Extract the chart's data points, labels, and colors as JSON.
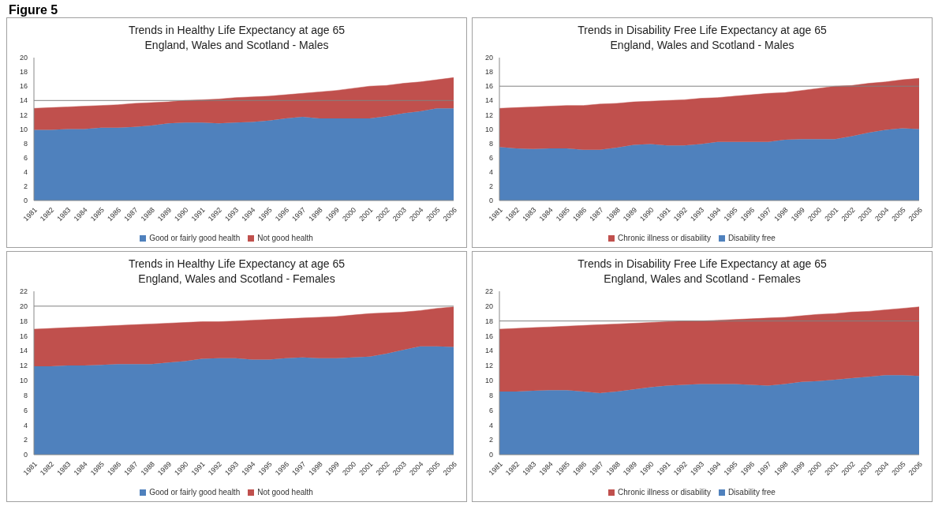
{
  "chart_data": [
    {
      "type": "area",
      "title": "Trends in Healthy Life Expectancy at age 65",
      "subtitle": "England, Wales and Scotland - Males",
      "annotations": [
        "Figure 5"
      ],
      "categories": [
        "1981",
        "1982",
        "1983",
        "1984",
        "1985",
        "1986",
        "1987",
        "1988",
        "1989",
        "1990",
        "1991",
        "1992",
        "1993",
        "1994",
        "1995",
        "1996",
        "1997",
        "1998",
        "1999",
        "2000",
        "2001",
        "2002",
        "2003",
        "2004",
        "2005",
        "2006"
      ],
      "stacked": true,
      "ylim": [
        0,
        20
      ],
      "yticks": [
        0,
        2,
        4,
        6,
        8,
        10,
        12,
        14,
        16,
        18,
        20
      ],
      "legend": "bottom",
      "ref_lines": [
        {
          "axis": "y",
          "value": 14,
          "color": "#808080"
        }
      ],
      "series": [
        {
          "name": "Good or fairly good health",
          "color": "#4f81bd",
          "values": [
            9.9,
            9.9,
            10.0,
            10.0,
            10.2,
            10.2,
            10.3,
            10.5,
            10.8,
            10.9,
            10.9,
            10.8,
            10.9,
            11.0,
            11.2,
            11.5,
            11.7,
            11.5,
            11.5,
            11.5,
            11.5,
            11.8,
            12.2,
            12.5,
            12.9,
            12.9
          ]
        },
        {
          "name": "Not good health",
          "color": "#c0504d",
          "values": [
            3.0,
            3.1,
            3.1,
            3.2,
            3.1,
            3.2,
            3.3,
            3.2,
            3.0,
            3.1,
            3.2,
            3.4,
            3.5,
            3.5,
            3.4,
            3.3,
            3.3,
            3.7,
            3.9,
            4.2,
            4.5,
            4.3,
            4.2,
            4.1,
            4.0,
            4.3
          ]
        }
      ]
    },
    {
      "type": "area",
      "title": "Trends in Disability Free Life Expectancy at age 65",
      "subtitle": "England, Wales and Scotland - Males",
      "categories": [
        "1981",
        "1982",
        "1983",
        "1984",
        "1985",
        "1986",
        "1987",
        "1988",
        "1989",
        "1990",
        "1991",
        "1992",
        "1993",
        "1994",
        "1995",
        "1996",
        "1997",
        "1998",
        "1999",
        "2000",
        "2001",
        "2002",
        "2003",
        "2004",
        "2005",
        "2006"
      ],
      "stacked": true,
      "ylim": [
        0,
        20
      ],
      "yticks": [
        0,
        2,
        4,
        6,
        8,
        10,
        12,
        14,
        16,
        18,
        20
      ],
      "legend": "bottom",
      "ref_lines": [
        {
          "axis": "y",
          "value": 16,
          "color": "#808080"
        }
      ],
      "series": [
        {
          "name": "Disability free",
          "color": "#4f81bd",
          "values": [
            7.5,
            7.3,
            7.2,
            7.3,
            7.3,
            7.1,
            7.1,
            7.4,
            7.8,
            7.9,
            7.7,
            7.7,
            7.9,
            8.2,
            8.2,
            8.2,
            8.2,
            8.5,
            8.6,
            8.6,
            8.6,
            9.0,
            9.5,
            9.9,
            10.1,
            10.0
          ]
        },
        {
          "name": "Chronic illness or disability",
          "color": "#c0504d",
          "values": [
            5.4,
            5.7,
            5.9,
            5.9,
            6.0,
            6.2,
            6.4,
            6.2,
            6.0,
            6.0,
            6.3,
            6.4,
            6.4,
            6.2,
            6.4,
            6.6,
            6.8,
            6.6,
            6.8,
            7.1,
            7.4,
            7.1,
            6.9,
            6.7,
            6.8,
            7.1
          ]
        }
      ]
    },
    {
      "type": "area",
      "title": "Trends in Healthy Life Expectancy at age 65",
      "subtitle": "England, Wales and Scotland - Females",
      "categories": [
        "1981",
        "1982",
        "1983",
        "1984",
        "1985",
        "1986",
        "1987",
        "1988",
        "1989",
        "1990",
        "1991",
        "1992",
        "1993",
        "1994",
        "1995",
        "1996",
        "1997",
        "1998",
        "1999",
        "2000",
        "2001",
        "2002",
        "2003",
        "2004",
        "2005",
        "2006"
      ],
      "stacked": true,
      "ylim": [
        0,
        22
      ],
      "yticks": [
        0,
        2,
        4,
        6,
        8,
        10,
        12,
        14,
        16,
        18,
        20,
        22
      ],
      "legend": "bottom",
      "ref_lines": [
        {
          "axis": "y",
          "value": 20,
          "color": "#808080"
        }
      ],
      "series": [
        {
          "name": "Good or fairly good health",
          "color": "#4f81bd",
          "values": [
            11.9,
            11.9,
            12.0,
            12.0,
            12.1,
            12.2,
            12.2,
            12.2,
            12.4,
            12.6,
            12.9,
            13.0,
            13.0,
            12.8,
            12.8,
            13.0,
            13.1,
            13.0,
            13.0,
            13.1,
            13.2,
            13.6,
            14.1,
            14.6,
            14.6,
            14.5
          ]
        },
        {
          "name": "Not good health",
          "color": "#c0504d",
          "values": [
            5.0,
            5.1,
            5.1,
            5.2,
            5.2,
            5.2,
            5.3,
            5.4,
            5.3,
            5.2,
            5.0,
            4.9,
            5.0,
            5.3,
            5.4,
            5.3,
            5.3,
            5.5,
            5.6,
            5.7,
            5.8,
            5.5,
            5.1,
            4.8,
            5.1,
            5.4
          ]
        }
      ]
    },
    {
      "type": "area",
      "title": "Trends in Disability Free Life Expectancy at age 65",
      "subtitle": "England, Wales and Scotland - Females",
      "categories": [
        "1981",
        "1982",
        "1983",
        "1984",
        "1985",
        "1986",
        "1987",
        "1988",
        "1989",
        "1990",
        "1991",
        "1992",
        "1993",
        "1994",
        "1995",
        "1996",
        "1997",
        "1998",
        "1999",
        "2000",
        "2001",
        "2002",
        "2003",
        "2004",
        "2005",
        "2006"
      ],
      "stacked": true,
      "ylim": [
        0,
        22
      ],
      "yticks": [
        0,
        2,
        4,
        6,
        8,
        10,
        12,
        14,
        16,
        18,
        20,
        22
      ],
      "legend": "bottom",
      "ref_lines": [
        {
          "axis": "y",
          "value": 18,
          "color": "#808080"
        }
      ],
      "series": [
        {
          "name": "Disability free",
          "color": "#4f81bd",
          "values": [
            8.5,
            8.5,
            8.6,
            8.7,
            8.7,
            8.5,
            8.3,
            8.5,
            8.8,
            9.1,
            9.3,
            9.4,
            9.5,
            9.5,
            9.5,
            9.4,
            9.3,
            9.5,
            9.8,
            9.9,
            10.1,
            10.3,
            10.5,
            10.7,
            10.7,
            10.6
          ]
        },
        {
          "name": "Chronic illness or disability",
          "color": "#c0504d",
          "values": [
            8.4,
            8.5,
            8.5,
            8.5,
            8.6,
            8.9,
            9.2,
            9.1,
            8.9,
            8.7,
            8.6,
            8.6,
            8.5,
            8.6,
            8.7,
            8.9,
            9.1,
            9.0,
            8.9,
            9.0,
            8.9,
            8.9,
            8.8,
            8.8,
            9.0,
            9.3
          ]
        }
      ]
    }
  ]
}
